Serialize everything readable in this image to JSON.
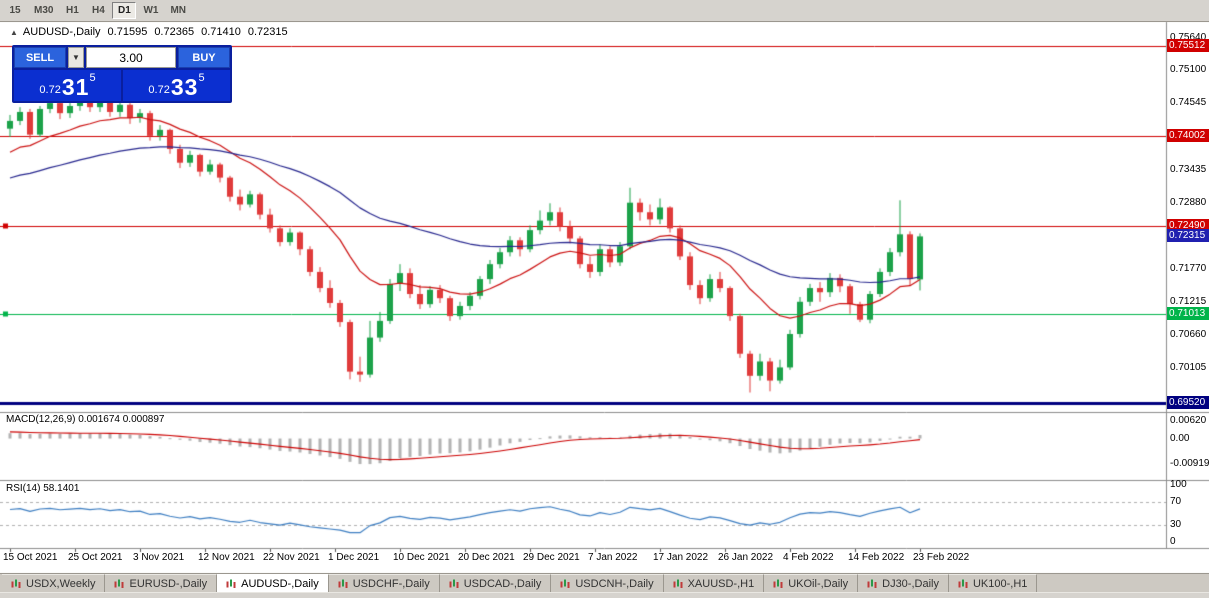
{
  "toolbar": {
    "timeframes": [
      {
        "label": "15",
        "active": false
      },
      {
        "label": "M30",
        "active": false
      },
      {
        "label": "H1",
        "active": false
      },
      {
        "label": "H4",
        "active": false
      },
      {
        "label": "D1",
        "active": true
      },
      {
        "label": "W1",
        "active": false
      },
      {
        "label": "MN",
        "active": false
      }
    ]
  },
  "chart_header": {
    "symbol": "AUDUSD-,Daily",
    "open": "0.71595",
    "high": "0.72365",
    "low": "0.71410",
    "close": "0.72315"
  },
  "trade_panel": {
    "sell_label": "SELL",
    "buy_label": "BUY",
    "volume": "3.00",
    "bid": {
      "prefix": "0.72",
      "big": "31",
      "sup": "5"
    },
    "ask": {
      "prefix": "0.72",
      "big": "33",
      "sup": "5"
    }
  },
  "price_axis": {
    "ticks": [
      "0.75640",
      "0.75100",
      "0.74545",
      "0.73990",
      "0.73435",
      "0.72880",
      "0.72325",
      "0.71770",
      "0.71215",
      "0.70660",
      "0.70105",
      "0.69550"
    ],
    "badges": [
      {
        "value": "0.75512",
        "bg": "#d00000",
        "name": "resistance-line-1"
      },
      {
        "value": "0.74002",
        "bg": "#d00000",
        "name": "resistance-line-2"
      },
      {
        "value": "0.72490",
        "bg": "#d00000",
        "name": "resistance-line-3"
      },
      {
        "value": "0.72315",
        "bg": "#2020b0",
        "name": "current-price"
      },
      {
        "value": "0.71013",
        "bg": "#00b44a",
        "name": "support-line-1"
      },
      {
        "value": "0.69520",
        "bg": "#000080",
        "name": "support-line-2"
      }
    ]
  },
  "time_axis": [
    "15 Oct 2021",
    "25 Oct 2021",
    "3 Nov 2021",
    "12 Nov 2021",
    "22 Nov 2021",
    "1 Dec 2021",
    "10 Dec 2021",
    "20 Dec 2021",
    "29 Dec 2021",
    "7 Jan 2022",
    "17 Jan 2022",
    "26 Jan 2022",
    "4 Feb 2022",
    "14 Feb 2022",
    "23 Feb 2022"
  ],
  "macd": {
    "label": "MACD(12,26,9) 0.001674 0.000897",
    "axis": [
      "0.00620",
      "0.00",
      "-0.00919"
    ]
  },
  "rsi": {
    "label": "RSI(14) 58.1401",
    "axis": [
      "100",
      "70",
      "30",
      "0"
    ],
    "levels": [
      70,
      30
    ]
  },
  "tabs": [
    {
      "label": "USDX,Weekly",
      "active": false
    },
    {
      "label": "EURUSD-,Daily",
      "active": false
    },
    {
      "label": "AUDUSD-,Daily",
      "active": true
    },
    {
      "label": "USDCHF-,Daily",
      "active": false
    },
    {
      "label": "USDCAD-,Daily",
      "active": false
    },
    {
      "label": "USDCNH-,Daily",
      "active": false
    },
    {
      "label": "XAUUSD-,H1",
      "active": false
    },
    {
      "label": "UKOil-,Daily",
      "active": false
    },
    {
      "label": "DJ30-,Daily",
      "active": false
    },
    {
      "label": "UK100-,H1",
      "active": false
    }
  ],
  "chart_data": {
    "type": "candlestick",
    "title": "AUDUSD-,Daily",
    "ylim": [
      0.6934,
      0.7584
    ],
    "current_price": 0.72315,
    "ohlc_format": [
      "open",
      "high",
      "low",
      "close"
    ],
    "ohlc": [
      [
        0.7412,
        0.7435,
        0.7398,
        0.7425
      ],
      [
        0.7425,
        0.7448,
        0.7418,
        0.744
      ],
      [
        0.744,
        0.7445,
        0.7395,
        0.7402
      ],
      [
        0.7402,
        0.745,
        0.7398,
        0.7445
      ],
      [
        0.7445,
        0.7462,
        0.7438,
        0.7455
      ],
      [
        0.7455,
        0.746,
        0.7428,
        0.7438
      ],
      [
        0.7438,
        0.7456,
        0.743,
        0.745
      ],
      [
        0.745,
        0.7468,
        0.7442,
        0.7462
      ],
      [
        0.7462,
        0.747,
        0.744,
        0.7448
      ],
      [
        0.7448,
        0.7465,
        0.744,
        0.746
      ],
      [
        0.746,
        0.7466,
        0.7432,
        0.744
      ],
      [
        0.744,
        0.7458,
        0.7432,
        0.7452
      ],
      [
        0.7452,
        0.7455,
        0.742,
        0.743
      ],
      [
        0.743,
        0.7445,
        0.7422,
        0.7438
      ],
      [
        0.7438,
        0.7442,
        0.7392,
        0.74
      ],
      [
        0.74,
        0.7418,
        0.7392,
        0.741
      ],
      [
        0.741,
        0.7412,
        0.737,
        0.7378
      ],
      [
        0.7378,
        0.7385,
        0.7346,
        0.7355
      ],
      [
        0.7355,
        0.7375,
        0.7348,
        0.7368
      ],
      [
        0.7368,
        0.737,
        0.7332,
        0.734
      ],
      [
        0.734,
        0.736,
        0.7335,
        0.7352
      ],
      [
        0.7352,
        0.7355,
        0.7322,
        0.733
      ],
      [
        0.733,
        0.7333,
        0.729,
        0.7298
      ],
      [
        0.7298,
        0.731,
        0.7275,
        0.7285
      ],
      [
        0.7285,
        0.7308,
        0.728,
        0.7302
      ],
      [
        0.7302,
        0.7305,
        0.726,
        0.7268
      ],
      [
        0.7268,
        0.7278,
        0.7238,
        0.7245
      ],
      [
        0.7245,
        0.725,
        0.7215,
        0.7222
      ],
      [
        0.7222,
        0.7245,
        0.7216,
        0.7238
      ],
      [
        0.7238,
        0.724,
        0.72,
        0.721
      ],
      [
        0.721,
        0.7215,
        0.7165,
        0.7172
      ],
      [
        0.7172,
        0.718,
        0.7138,
        0.7145
      ],
      [
        0.7145,
        0.7158,
        0.7112,
        0.712
      ],
      [
        0.712,
        0.7125,
        0.708,
        0.7088
      ],
      [
        0.7088,
        0.7092,
        0.6992,
        0.7005
      ],
      [
        0.7005,
        0.703,
        0.6988,
        0.7
      ],
      [
        0.7,
        0.709,
        0.6995,
        0.7062
      ],
      [
        0.7062,
        0.7105,
        0.7055,
        0.709
      ],
      [
        0.709,
        0.716,
        0.7085,
        0.7152
      ],
      [
        0.7152,
        0.7185,
        0.714,
        0.717
      ],
      [
        0.717,
        0.7178,
        0.7128,
        0.7135
      ],
      [
        0.7135,
        0.715,
        0.711,
        0.7118
      ],
      [
        0.7118,
        0.7148,
        0.7112,
        0.7142
      ],
      [
        0.7142,
        0.715,
        0.712,
        0.7128
      ],
      [
        0.7128,
        0.7132,
        0.709,
        0.7098
      ],
      [
        0.7098,
        0.7122,
        0.7092,
        0.7115
      ],
      [
        0.7115,
        0.7138,
        0.7108,
        0.7132
      ],
      [
        0.7132,
        0.7165,
        0.7126,
        0.716
      ],
      [
        0.716,
        0.7192,
        0.7152,
        0.7185
      ],
      [
        0.7185,
        0.7212,
        0.7178,
        0.7205
      ],
      [
        0.7205,
        0.7232,
        0.7198,
        0.7225
      ],
      [
        0.7225,
        0.723,
        0.7198,
        0.721
      ],
      [
        0.721,
        0.725,
        0.7205,
        0.7242
      ],
      [
        0.7242,
        0.7275,
        0.7235,
        0.7258
      ],
      [
        0.7258,
        0.7287,
        0.725,
        0.7272
      ],
      [
        0.7272,
        0.728,
        0.724,
        0.7248
      ],
      [
        0.7248,
        0.7258,
        0.722,
        0.7228
      ],
      [
        0.7228,
        0.7232,
        0.7178,
        0.7185
      ],
      [
        0.7185,
        0.7198,
        0.7162,
        0.7172
      ],
      [
        0.7172,
        0.7218,
        0.7165,
        0.721
      ],
      [
        0.721,
        0.7215,
        0.718,
        0.7188
      ],
      [
        0.7188,
        0.7222,
        0.7182,
        0.7215
      ],
      [
        0.7215,
        0.7313,
        0.721,
        0.7288
      ],
      [
        0.7288,
        0.7295,
        0.7258,
        0.7272
      ],
      [
        0.7272,
        0.7285,
        0.725,
        0.726
      ],
      [
        0.726,
        0.7295,
        0.7252,
        0.728
      ],
      [
        0.728,
        0.7282,
        0.7238,
        0.7245
      ],
      [
        0.7245,
        0.725,
        0.7192,
        0.7198
      ],
      [
        0.7198,
        0.7205,
        0.7142,
        0.715
      ],
      [
        0.715,
        0.7158,
        0.7118,
        0.7128
      ],
      [
        0.7128,
        0.7168,
        0.7122,
        0.716
      ],
      [
        0.716,
        0.7172,
        0.7138,
        0.7145
      ],
      [
        0.7145,
        0.7148,
        0.709,
        0.7098
      ],
      [
        0.7098,
        0.7102,
        0.7028,
        0.7035
      ],
      [
        0.7035,
        0.704,
        0.697,
        0.6998
      ],
      [
        0.6998,
        0.7035,
        0.699,
        0.7022
      ],
      [
        0.7022,
        0.7028,
        0.6972,
        0.699
      ],
      [
        0.699,
        0.7025,
        0.6985,
        0.7012
      ],
      [
        0.7012,
        0.7075,
        0.7008,
        0.7068
      ],
      [
        0.7068,
        0.713,
        0.7062,
        0.7122
      ],
      [
        0.7122,
        0.7152,
        0.7115,
        0.7145
      ],
      [
        0.7145,
        0.7155,
        0.7122,
        0.7138
      ],
      [
        0.7138,
        0.717,
        0.713,
        0.7162
      ],
      [
        0.7162,
        0.7168,
        0.7138,
        0.7148
      ],
      [
        0.7148,
        0.7152,
        0.7102,
        0.7118
      ],
      [
        0.7118,
        0.7122,
        0.7088,
        0.7092
      ],
      [
        0.7092,
        0.714,
        0.7086,
        0.7135
      ],
      [
        0.7135,
        0.7178,
        0.713,
        0.7172
      ],
      [
        0.7172,
        0.7212,
        0.7165,
        0.7205
      ],
      [
        0.7205,
        0.7292,
        0.7198,
        0.7235
      ],
      [
        0.7235,
        0.724,
        0.715,
        0.716
      ],
      [
        0.71595,
        0.72365,
        0.7141,
        0.72315
      ]
    ],
    "hlines": [
      {
        "price": 0.75512,
        "color": "#d00000",
        "width": 1,
        "marker": false
      },
      {
        "price": 0.74002,
        "color": "#d00000",
        "width": 1,
        "marker": false
      },
      {
        "price": 0.7249,
        "color": "#d00000",
        "width": 1,
        "marker": true
      },
      {
        "price": 0.71013,
        "color": "#00b44a",
        "width": 1,
        "marker": true
      },
      {
        "price": 0.6952,
        "color": "#000080",
        "width": 3,
        "marker": false
      }
    ],
    "indicators": {
      "ma_fast": {
        "type": "ema",
        "period": 15,
        "color": "#cc1111"
      },
      "ma_slow": {
        "type": "ema",
        "period": 45,
        "color": "#26268e"
      },
      "macd": {
        "fast": 12,
        "slow": 26,
        "signal": 9,
        "main_value": "0.001674",
        "signal_value": "0.000897"
      },
      "rsi": {
        "period": 14,
        "value": "58.1401"
      }
    },
    "style": {
      "up_candle": "#1ca24a",
      "down_candle": "#e03b3b",
      "macd_hist": "#b3b3b3",
      "macd_signal": "#cc0000",
      "rsi_line": "#3d7ec2",
      "background": "#ffffff"
    }
  }
}
